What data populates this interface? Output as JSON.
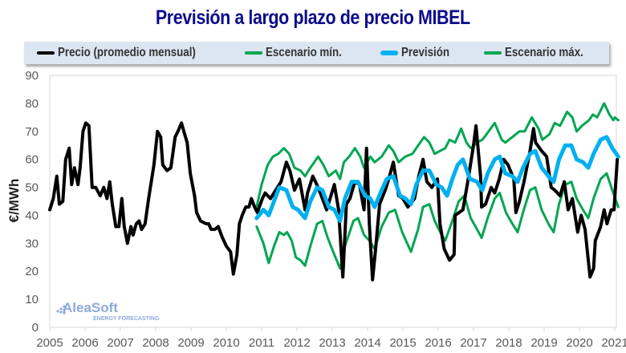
{
  "title": "Previsión a largo plazo de precio MIBEL",
  "watermark": {
    "brand": "AleaSoft",
    "tagline": "ENERGY FORECASTING"
  },
  "colors": {
    "title": "#0b0b8a",
    "precio": "#000000",
    "escenario": "#00a651",
    "prevision": "#00b0f0",
    "legend_bg": "#dce6f2"
  },
  "chart_data": {
    "type": "line",
    "title": "Previsión a largo plazo de precio MIBEL",
    "xlabel": "",
    "ylabel": "€/MWh",
    "xlim": [
      2005,
      2021.1
    ],
    "ylim": [
      0,
      90
    ],
    "yticks": [
      "0",
      "10",
      "20",
      "30",
      "40",
      "50",
      "60",
      "70",
      "80",
      "90"
    ],
    "xticks": [
      "2005",
      "2006",
      "2007",
      "2008",
      "2009",
      "2010",
      "2011",
      "2012",
      "2013",
      "2014",
      "2015",
      "2016",
      "2017",
      "2018",
      "2019",
      "2020",
      "2021"
    ],
    "grid": false,
    "legend_position": "top",
    "series": [
      {
        "name": "Precio (promedio mensual)",
        "color": "#000000",
        "x": [
          2005.0,
          2005.1,
          2005.2,
          2005.27,
          2005.37,
          2005.45,
          2005.55,
          2005.62,
          2005.7,
          2005.8,
          2005.86,
          2005.94,
          2006.02,
          2006.11,
          2006.2,
          2006.3,
          2006.43,
          2006.53,
          2006.62,
          2006.7,
          2006.77,
          2006.87,
          2006.96,
          2007.04,
          2007.11,
          2007.2,
          2007.3,
          2007.36,
          2007.45,
          2007.53,
          2007.6,
          2007.7,
          2007.8,
          2007.95,
          2008.05,
          2008.14,
          2008.2,
          2008.32,
          2008.43,
          2008.55,
          2008.63,
          2008.73,
          2008.82,
          2008.89,
          2008.98,
          2009.1,
          2009.16,
          2009.27,
          2009.43,
          2009.5,
          2009.57,
          2009.68,
          2009.77,
          2009.89,
          2010.0,
          2010.12,
          2010.2,
          2010.3,
          2010.37,
          2010.45,
          2010.55,
          2010.64,
          2010.71,
          2010.8,
          2010.88,
          2011.02,
          2011.1,
          2011.25,
          2011.4,
          2011.55,
          2011.7,
          2011.8,
          2011.93,
          2012.07,
          2012.23,
          2012.3,
          2012.45,
          2012.6,
          2012.84,
          2013.06,
          2013.18,
          2013.3,
          2013.4,
          2013.5,
          2013.64,
          2013.77,
          2013.9,
          2013.97,
          2014.05,
          2014.14,
          2014.22,
          2014.34,
          2014.5,
          2014.6,
          2014.73,
          2014.88,
          2015.0,
          2015.14,
          2015.33,
          2015.45,
          2015.57,
          2015.68,
          2015.82,
          2015.98,
          2016.05,
          2016.17,
          2016.32,
          2016.45,
          2016.48,
          2016.7,
          2016.85,
          2017.0,
          2017.07,
          2017.2,
          2017.23,
          2017.34,
          2017.5,
          2017.6,
          2017.73,
          2017.86,
          2017.98,
          2018.14,
          2018.2,
          2018.3,
          2018.43,
          2018.6,
          2018.7,
          2018.76,
          2018.93,
          2019.07,
          2019.2,
          2019.3,
          2019.45,
          2019.57,
          2019.68,
          2019.8,
          2019.95,
          2020.05,
          2020.16,
          2020.3,
          2020.4,
          2020.45,
          2020.6,
          2020.7,
          2020.78,
          2020.9,
          2020.98,
          2021.07
        ],
        "values": [
          42,
          46,
          54,
          44,
          45,
          60,
          64,
          51,
          57,
          51,
          57,
          70,
          73,
          72,
          50,
          50,
          47,
          50,
          46,
          52,
          44,
          36,
          36,
          46,
          36,
          30,
          36,
          33,
          37,
          38,
          35,
          37,
          46,
          58,
          70,
          68,
          58,
          56,
          57,
          68,
          70,
          73,
          69,
          66,
          55,
          47,
          41,
          38,
          37,
          37,
          35,
          35,
          36,
          32,
          29,
          27,
          19,
          26,
          37,
          40,
          43,
          43,
          46,
          43,
          41,
          46,
          48,
          46,
          49,
          52,
          59,
          56,
          49,
          53,
          42,
          48,
          54,
          50,
          42,
          51,
          42,
          18,
          44,
          46,
          52,
          51,
          42,
          64,
          37,
          17,
          27,
          44,
          49,
          53,
          59,
          47,
          46,
          43,
          46,
          54,
          60,
          52,
          50,
          53,
          37,
          28,
          24,
          26,
          40,
          42,
          53,
          65,
          72,
          54,
          43,
          44,
          50,
          48,
          53,
          60,
          58,
          53,
          41,
          45,
          52,
          63,
          71,
          66,
          63,
          61,
          50,
          49,
          47,
          52,
          42,
          46,
          34,
          40,
          35,
          18,
          21,
          31,
          36,
          42,
          37,
          42,
          42,
          60
        ]
      },
      {
        "name": "Escenario mín.",
        "color": "#00a651",
        "x": [
          2010.86,
          2011.05,
          2011.2,
          2011.35,
          2011.5,
          2011.63,
          2011.72,
          2011.85,
          2011.97,
          2012.1,
          2012.23,
          2012.38,
          2012.57,
          2012.72,
          2012.87,
          2013.06,
          2013.22,
          2013.36,
          2013.6,
          2013.73,
          2013.9,
          2014.05,
          2014.2,
          2014.4,
          2014.6,
          2014.78,
          2014.98,
          2015.23,
          2015.43,
          2015.57,
          2015.75,
          2015.9,
          2016.1,
          2016.2,
          2016.4,
          2016.58,
          2016.74,
          2016.92,
          2017.1,
          2017.23,
          2017.4,
          2017.6,
          2017.74,
          2017.92,
          2018.1,
          2018.25,
          2018.4,
          2018.6,
          2018.75,
          2018.93,
          2019.12,
          2019.27,
          2019.42,
          2019.6,
          2019.77,
          2019.92,
          2020.1,
          2020.25,
          2020.4,
          2020.6,
          2020.77,
          2020.93,
          2021.1
        ],
        "values": [
          36,
          30,
          23,
          29,
          34,
          33,
          34,
          31,
          25,
          24,
          22,
          29,
          37,
          38,
          32,
          26,
          21,
          29,
          38,
          39,
          33,
          31,
          28,
          36,
          41,
          42,
          34,
          27,
          35,
          43,
          44,
          38,
          33,
          31,
          38,
          45,
          47,
          39,
          35,
          32,
          39,
          46,
          48,
          41,
          37,
          34,
          41,
          49,
          50,
          42,
          37,
          34,
          44,
          51,
          52,
          46,
          42,
          39,
          46,
          53,
          55,
          49,
          43
        ]
      },
      {
        "name": "Previsión",
        "color": "#00b0f0",
        "x": [
          2010.86,
          2011.05,
          2011.2,
          2011.35,
          2011.5,
          2011.7,
          2011.88,
          2012.03,
          2012.23,
          2012.38,
          2012.57,
          2012.72,
          2012.9,
          2013.06,
          2013.22,
          2013.36,
          2013.55,
          2013.73,
          2013.93,
          2014.08,
          2014.2,
          2014.4,
          2014.54,
          2014.73,
          2014.92,
          2015.07,
          2015.23,
          2015.38,
          2015.57,
          2015.75,
          2015.95,
          2016.1,
          2016.25,
          2016.4,
          2016.55,
          2016.7,
          2016.9,
          2017.1,
          2017.25,
          2017.4,
          2017.6,
          2017.74,
          2017.9,
          2018.1,
          2018.25,
          2018.4,
          2018.6,
          2018.75,
          2018.93,
          2019.12,
          2019.27,
          2019.42,
          2019.6,
          2019.77,
          2019.92,
          2020.1,
          2020.25,
          2020.4,
          2020.6,
          2020.77,
          2020.93,
          2021.1
        ],
        "values": [
          39,
          42,
          40,
          45,
          50,
          49,
          43,
          42,
          39,
          45,
          50,
          49,
          43,
          42,
          38,
          46,
          52,
          52,
          47,
          46,
          43,
          49,
          53,
          54,
          47,
          46,
          44,
          51,
          56,
          56,
          51,
          50,
          47,
          53,
          58,
          60,
          53,
          52,
          49,
          55,
          60,
          61,
          55,
          54,
          52,
          57,
          62,
          63,
          57,
          54,
          52,
          60,
          65,
          65,
          60,
          59,
          57,
          62,
          67,
          68,
          64,
          61
        ]
      },
      {
        "name": "Escenario máx.",
        "color": "#00a651",
        "x": [
          2010.86,
          2011.0,
          2011.17,
          2011.32,
          2011.47,
          2011.63,
          2011.78,
          2011.93,
          2012.1,
          2012.23,
          2012.38,
          2012.6,
          2012.75,
          2012.9,
          2013.1,
          2013.22,
          2013.33,
          2013.48,
          2013.64,
          2013.79,
          2013.9,
          2014.08,
          2014.2,
          2014.4,
          2014.6,
          2014.73,
          2014.88,
          2015.07,
          2015.27,
          2015.38,
          2015.6,
          2015.75,
          2015.9,
          2016.05,
          2016.2,
          2016.32,
          2016.48,
          2016.65,
          2016.8,
          2016.92,
          2017.1,
          2017.25,
          2017.37,
          2017.6,
          2017.8,
          2017.9,
          2018.1,
          2018.3,
          2018.45,
          2018.65,
          2018.84,
          2018.95,
          2019.15,
          2019.3,
          2019.45,
          2019.65,
          2019.8,
          2019.92,
          2020.07,
          2020.27,
          2020.38,
          2020.5,
          2020.7,
          2020.85,
          2020.96,
          2021.0,
          2021.1
        ],
        "values": [
          43,
          51,
          58,
          61,
          62,
          64,
          62,
          57,
          56,
          54,
          57,
          61,
          58,
          54,
          56,
          53,
          59,
          61,
          64,
          61,
          57,
          61,
          59,
          61,
          65,
          63,
          59,
          61,
          62,
          64,
          68,
          66,
          62,
          63,
          64,
          67,
          66,
          71,
          66,
          64,
          66,
          67,
          69,
          73,
          67,
          66,
          68,
          70,
          70,
          75,
          71,
          67,
          69,
          73,
          72,
          77,
          75,
          70,
          72,
          74,
          76,
          75,
          80,
          76,
          74,
          75,
          74
        ]
      }
    ]
  }
}
